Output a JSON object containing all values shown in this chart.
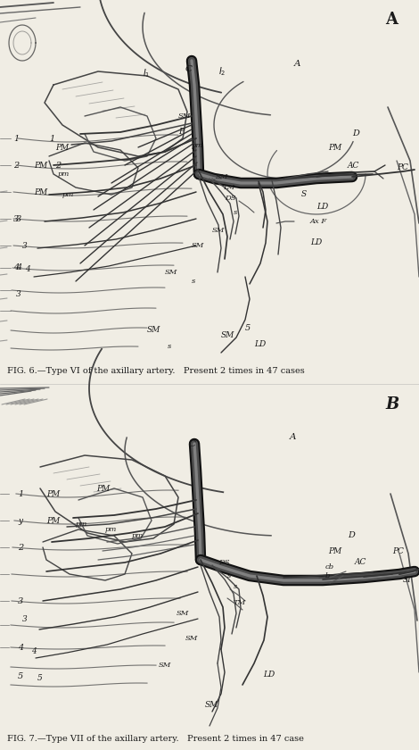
{
  "fig_width": 4.7,
  "fig_height": 8.4,
  "dpi": 100,
  "bg_color": "#f0ede4",
  "ink_color": "#1a1a1a",
  "caption_A": "FIG. 6.—Type VI of the axillary artery.   Present 2 times in 47 cases",
  "caption_B": "FIG. 7.—Type VII of the axillary artery.   Present 2 times in 47 case",
  "label_A": "A",
  "label_B": "B"
}
